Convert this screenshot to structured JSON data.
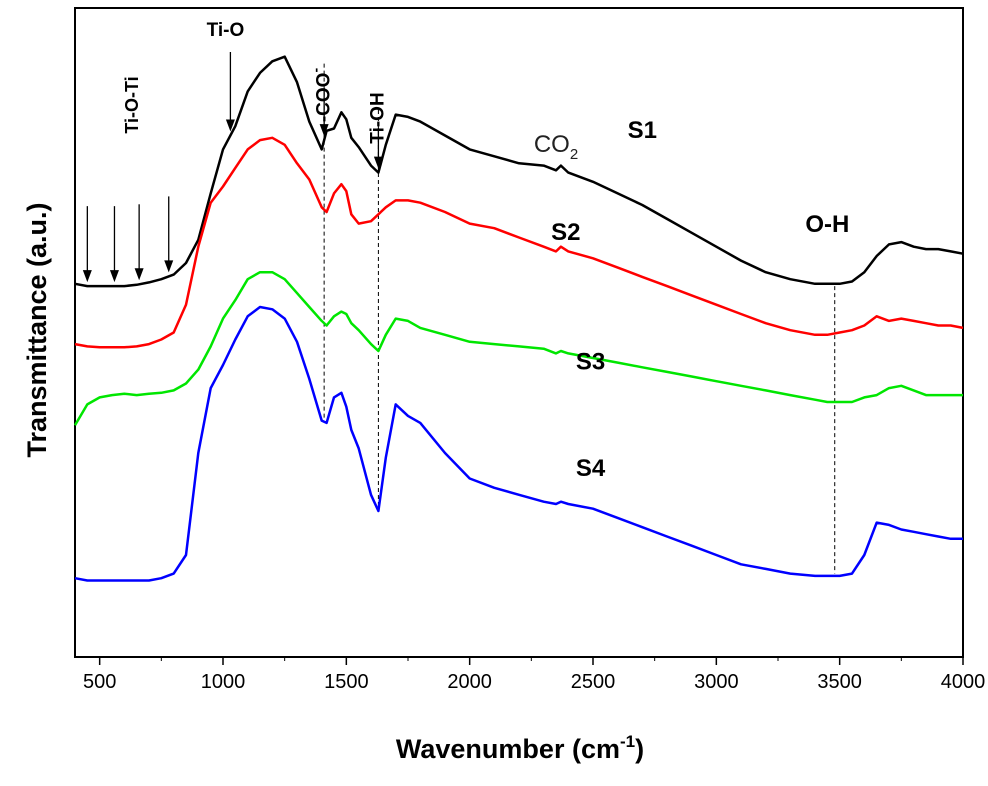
{
  "chart_data": {
    "type": "line",
    "title": "",
    "xlabel": "Wavenumber (cm",
    "xlabel_sup": "-1",
    "xlabel_close": ")",
    "ylabel": "Transmittance (a.u.)",
    "xlim": [
      400,
      4000
    ],
    "x_ticks": [
      500,
      1000,
      1500,
      2000,
      2500,
      3000,
      3500,
      4000
    ],
    "y_ticks_shown": false,
    "grid": false,
    "legend": "none",
    "y_units": "arbitrary (offset traces, higher = more transmittance)",
    "x": [
      400,
      450,
      500,
      550,
      600,
      650,
      700,
      750,
      800,
      850,
      900,
      950,
      1000,
      1050,
      1100,
      1150,
      1200,
      1250,
      1300,
      1350,
      1400,
      1420,
      1450,
      1480,
      1500,
      1520,
      1550,
      1600,
      1630,
      1660,
      1700,
      1750,
      1800,
      1900,
      2000,
      2100,
      2200,
      2300,
      2350,
      2370,
      2400,
      2500,
      2600,
      2700,
      2800,
      2900,
      3000,
      3100,
      3200,
      3300,
      3400,
      3450,
      3500,
      3550,
      3600,
      3650,
      3700,
      3750,
      3800,
      3850,
      3900,
      3950,
      4000
    ],
    "series": [
      {
        "name": "S1",
        "color": "#000000",
        "values": [
          40.5,
          40.0,
          40.0,
          40.0,
          40.0,
          40.3,
          40.8,
          41.5,
          42.5,
          45.0,
          50.0,
          60.0,
          69.5,
          74.5,
          82.0,
          86.0,
          88.5,
          89.5,
          84.0,
          75.5,
          69.5,
          73.5,
          74.0,
          77.5,
          76.0,
          72.0,
          70.0,
          66.0,
          64.5,
          70.5,
          77.0,
          76.5,
          75.5,
          72.5,
          69.5,
          68.0,
          66.5,
          66.0,
          65.0,
          66.0,
          64.5,
          62.5,
          60.0,
          57.5,
          54.5,
          51.5,
          48.5,
          45.5,
          43.0,
          41.5,
          40.5,
          40.5,
          40.5,
          41.0,
          43.0,
          46.5,
          49.0,
          49.5,
          48.5,
          48.0,
          48.0,
          47.5,
          47.0
        ]
      },
      {
        "name": "S2",
        "color": "#ff0000",
        "values": [
          27.5,
          27.0,
          26.8,
          26.8,
          26.8,
          27.0,
          27.5,
          28.5,
          30.0,
          36.0,
          48.5,
          58.0,
          61.5,
          65.5,
          69.5,
          71.5,
          72.0,
          70.5,
          66.5,
          63.0,
          57.0,
          56.0,
          60.0,
          62.0,
          60.5,
          55.5,
          53.5,
          54.0,
          55.5,
          57.0,
          58.5,
          58.5,
          58.0,
          56.0,
          53.5,
          52.5,
          50.5,
          48.5,
          47.5,
          48.5,
          47.5,
          46.0,
          44.0,
          42.0,
          40.0,
          38.0,
          36.0,
          34.0,
          32.0,
          30.5,
          29.5,
          29.5,
          30.0,
          30.5,
          31.5,
          33.5,
          32.5,
          33.0,
          32.5,
          32.0,
          31.5,
          31.5,
          31.0
        ]
      },
      {
        "name": "S3",
        "color": "#00e600",
        "values": [
          10.0,
          14.5,
          16.0,
          16.5,
          16.8,
          16.5,
          16.8,
          17.0,
          17.5,
          19.0,
          22.0,
          27.0,
          33.0,
          37.0,
          41.5,
          43.0,
          43.0,
          41.5,
          38.5,
          35.5,
          32.5,
          31.5,
          33.5,
          34.5,
          34.0,
          32.0,
          30.5,
          27.5,
          26.0,
          29.5,
          33.0,
          32.5,
          31.0,
          29.5,
          28.0,
          27.5,
          27.0,
          26.5,
          25.5,
          26.0,
          25.5,
          24.5,
          23.5,
          22.5,
          21.5,
          20.5,
          19.5,
          18.5,
          17.5,
          16.5,
          15.5,
          15.0,
          15.0,
          15.0,
          16.0,
          16.5,
          18.0,
          18.5,
          17.5,
          16.5,
          16.5,
          16.5,
          16.5
        ]
      },
      {
        "name": "S4",
        "color": "#0000ff",
        "values": [
          -23.0,
          -23.5,
          -23.5,
          -23.5,
          -23.5,
          -23.5,
          -23.5,
          -23.0,
          -22.0,
          -18.0,
          4.0,
          18.0,
          23.0,
          28.5,
          33.5,
          35.5,
          35.0,
          33.0,
          28.0,
          20.0,
          11.0,
          10.5,
          16.0,
          17.0,
          14.0,
          9.0,
          5.0,
          -5.0,
          -8.5,
          3.0,
          14.5,
          12.0,
          10.5,
          4.0,
          -1.5,
          -3.5,
          -5.0,
          -6.5,
          -7.0,
          -6.5,
          -7.0,
          -8.0,
          -10.0,
          -12.0,
          -14.0,
          -16.0,
          -18.0,
          -20.0,
          -21.0,
          -22.0,
          -22.5,
          -22.5,
          -22.5,
          -22.0,
          -18.0,
          -11.0,
          -11.5,
          -12.5,
          -13.0,
          -13.5,
          -14.0,
          -14.5,
          -14.5
        ]
      }
    ],
    "series_labels": [
      {
        "text": "S1",
        "x": 2700,
        "y": 72
      },
      {
        "text": "S2",
        "x": 2390,
        "y": 50
      },
      {
        "text": "S3",
        "x": 2490,
        "y": 22
      },
      {
        "text": "S4",
        "x": 2490,
        "y": -1
      }
    ],
    "annotations": [
      {
        "text": "Ti-O-Ti",
        "anchor_x": 650,
        "rotated": true
      },
      {
        "text": "Ti-O",
        "anchor_x": 1010,
        "rotated": false
      },
      {
        "text": "-COO",
        "sup": "-",
        "anchor_x": 1410,
        "rotated": true
      },
      {
        "text": "Ti-OH",
        "anchor_x": 1630,
        "rotated": true
      },
      {
        "text": "CO",
        "sub": "2",
        "anchor_x": 2380,
        "rotated": false
      },
      {
        "text": "O-H",
        "anchor_x": 3480,
        "rotated": false
      }
    ],
    "arrows_x": [
      450,
      560,
      660,
      780,
      1030,
      1410,
      1630
    ],
    "dashed_lines_x": [
      1410,
      1630,
      3480
    ]
  }
}
